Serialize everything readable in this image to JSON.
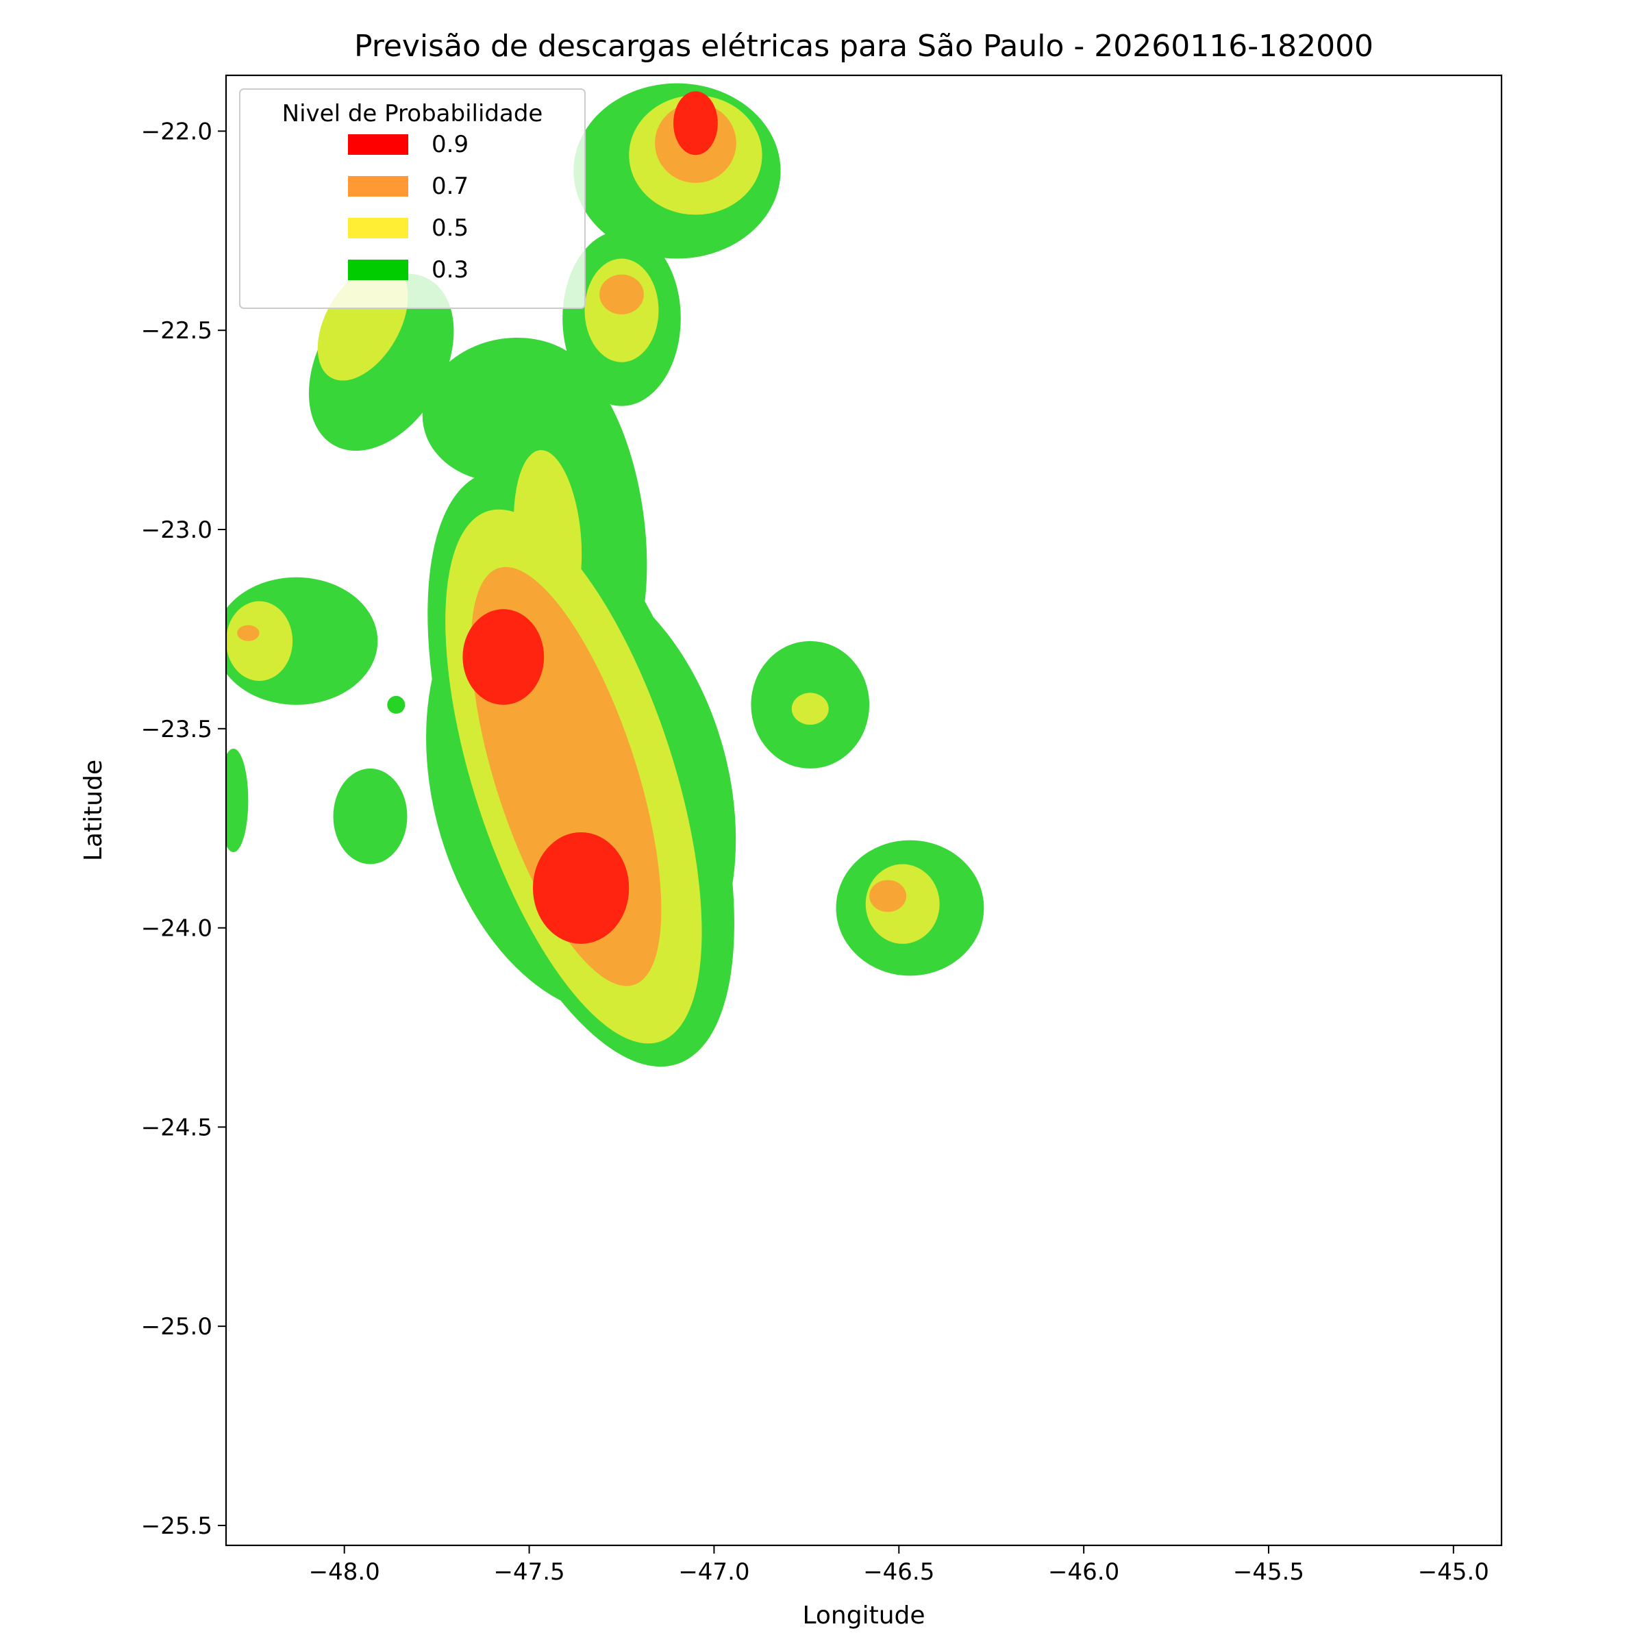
{
  "chart_data": {
    "type": "contour",
    "title": "Previsão de descargas elétricas para São Paulo - 20260116-182000",
    "xlabel": "Longitude",
    "ylabel": "Latitude",
    "xlim": [
      -48.32,
      -44.87
    ],
    "ylim": [
      -25.55,
      -21.86
    ],
    "xticks": [
      -48.0,
      -47.5,
      -47.0,
      -46.5,
      -46.0,
      -45.5,
      -45.0
    ],
    "xtick_labels": [
      "−48.0",
      "−47.5",
      "−47.0",
      "−46.5",
      "−46.0",
      "−45.5",
      "−45.0"
    ],
    "yticks": [
      -22.0,
      -22.5,
      -23.0,
      -23.5,
      -24.0,
      -24.5,
      -25.0,
      -25.5
    ],
    "ytick_labels": [
      "−22.0",
      "−22.5",
      "−23.0",
      "−23.5",
      "−24.0",
      "−24.5",
      "−25.0",
      "−25.5"
    ],
    "grid": false,
    "legend": {
      "title": "Nivel de Probabilidade",
      "placement": "top-left",
      "entries": [
        {
          "label": "0.9",
          "color": "#ff0000"
        },
        {
          "label": "0.7",
          "color": "#ff9933"
        },
        {
          "label": "0.5",
          "color": "#ffee33"
        },
        {
          "label": "0.3",
          "color": "#00cc00"
        }
      ]
    },
    "fill_colors": {
      "0.3": "#38d638",
      "0.5": "#d4ec36",
      "0.7": "#f7a535",
      "0.9": "#ff2410"
    },
    "cells": [
      {
        "level": "0.3",
        "lon": -47.36,
        "lat": -23.6,
        "rlon": 0.34,
        "rlat": 0.78,
        "rot": -18
      },
      {
        "level": "0.3",
        "lon": -47.36,
        "lat": -23.65,
        "rlon": 0.4,
        "rlat": 0.58,
        "rot": -15
      },
      {
        "level": "0.5",
        "lon": -47.38,
        "lat": -23.62,
        "rlon": 0.27,
        "rlat": 0.7,
        "rot": -18
      },
      {
        "level": "0.7",
        "lon": -47.4,
        "lat": -23.62,
        "rlon": 0.19,
        "rlat": 0.55,
        "rot": -18
      },
      {
        "level": "0.9",
        "lon": -47.57,
        "lat": -23.32,
        "rlon": 0.11,
        "rlat": 0.12,
        "rot": 0
      },
      {
        "level": "0.9",
        "lon": -47.36,
        "lat": -23.9,
        "rlon": 0.13,
        "rlat": 0.14,
        "rot": 0
      },
      {
        "level": "0.3",
        "lon": -47.38,
        "lat": -22.98,
        "rlon": 0.19,
        "rlat": 0.42,
        "rot": -8
      },
      {
        "level": "0.5",
        "lon": -47.45,
        "lat": -23.02,
        "rlon": 0.09,
        "rlat": 0.22,
        "rot": -5
      },
      {
        "level": "0.3",
        "lon": -47.55,
        "lat": -22.7,
        "rlon": 0.24,
        "rlat": 0.18,
        "rot": -10
      },
      {
        "level": "0.3",
        "lon": -47.9,
        "lat": -22.58,
        "rlon": 0.17,
        "rlat": 0.24,
        "rot": 30
      },
      {
        "level": "0.5",
        "lon": -47.95,
        "lat": -22.48,
        "rlon": 0.1,
        "rlat": 0.16,
        "rot": 30
      },
      {
        "level": "0.3",
        "lon": -47.1,
        "lat": -22.1,
        "rlon": 0.28,
        "rlat": 0.22,
        "rot": 0
      },
      {
        "level": "0.5",
        "lon": -47.05,
        "lat": -22.06,
        "rlon": 0.18,
        "rlat": 0.15,
        "rot": 0
      },
      {
        "level": "0.7",
        "lon": -47.05,
        "lat": -22.03,
        "rlon": 0.11,
        "rlat": 0.1,
        "rot": 0
      },
      {
        "level": "0.9",
        "lon": -47.05,
        "lat": -21.98,
        "rlon": 0.06,
        "rlat": 0.08,
        "rot": 0
      },
      {
        "level": "0.3",
        "lon": -47.25,
        "lat": -22.47,
        "rlon": 0.16,
        "rlat": 0.22,
        "rot": 0
      },
      {
        "level": "0.5",
        "lon": -47.25,
        "lat": -22.45,
        "rlon": 0.1,
        "rlat": 0.13,
        "rot": 0
      },
      {
        "level": "0.7",
        "lon": -47.25,
        "lat": -22.41,
        "rlon": 0.06,
        "rlat": 0.05,
        "rot": 0
      },
      {
        "level": "0.3",
        "lon": -48.13,
        "lat": -23.28,
        "rlon": 0.22,
        "rlat": 0.16,
        "rot": 0
      },
      {
        "level": "0.5",
        "lon": -48.23,
        "lat": -23.28,
        "rlon": 0.09,
        "rlat": 0.1,
        "rot": 0
      },
      {
        "level": "0.7",
        "lon": -48.26,
        "lat": -23.26,
        "rlon": 0.03,
        "rlat": 0.02,
        "rot": 0
      },
      {
        "level": "0.3",
        "lon": -46.74,
        "lat": -23.44,
        "rlon": 0.16,
        "rlat": 0.16,
        "rot": 0
      },
      {
        "level": "0.5",
        "lon": -46.74,
        "lat": -23.45,
        "rlon": 0.05,
        "rlat": 0.04,
        "rot": 0
      },
      {
        "level": "0.3",
        "lon": -46.47,
        "lat": -23.95,
        "rlon": 0.2,
        "rlat": 0.17,
        "rot": 0
      },
      {
        "level": "0.5",
        "lon": -46.49,
        "lat": -23.94,
        "rlon": 0.1,
        "rlat": 0.1,
        "rot": 0
      },
      {
        "level": "0.7",
        "lon": -46.53,
        "lat": -23.92,
        "rlon": 0.05,
        "rlat": 0.04,
        "rot": 0
      },
      {
        "level": "0.3",
        "lon": -47.93,
        "lat": -23.72,
        "rlon": 0.1,
        "rlat": 0.12,
        "rot": 0
      },
      {
        "level": "0.3",
        "lon": -48.3,
        "lat": -23.68,
        "rlon": 0.04,
        "rlat": 0.13,
        "rot": 0
      }
    ],
    "marker": {
      "lon": -47.86,
      "lat": -23.44,
      "color": "#00cc00"
    }
  }
}
